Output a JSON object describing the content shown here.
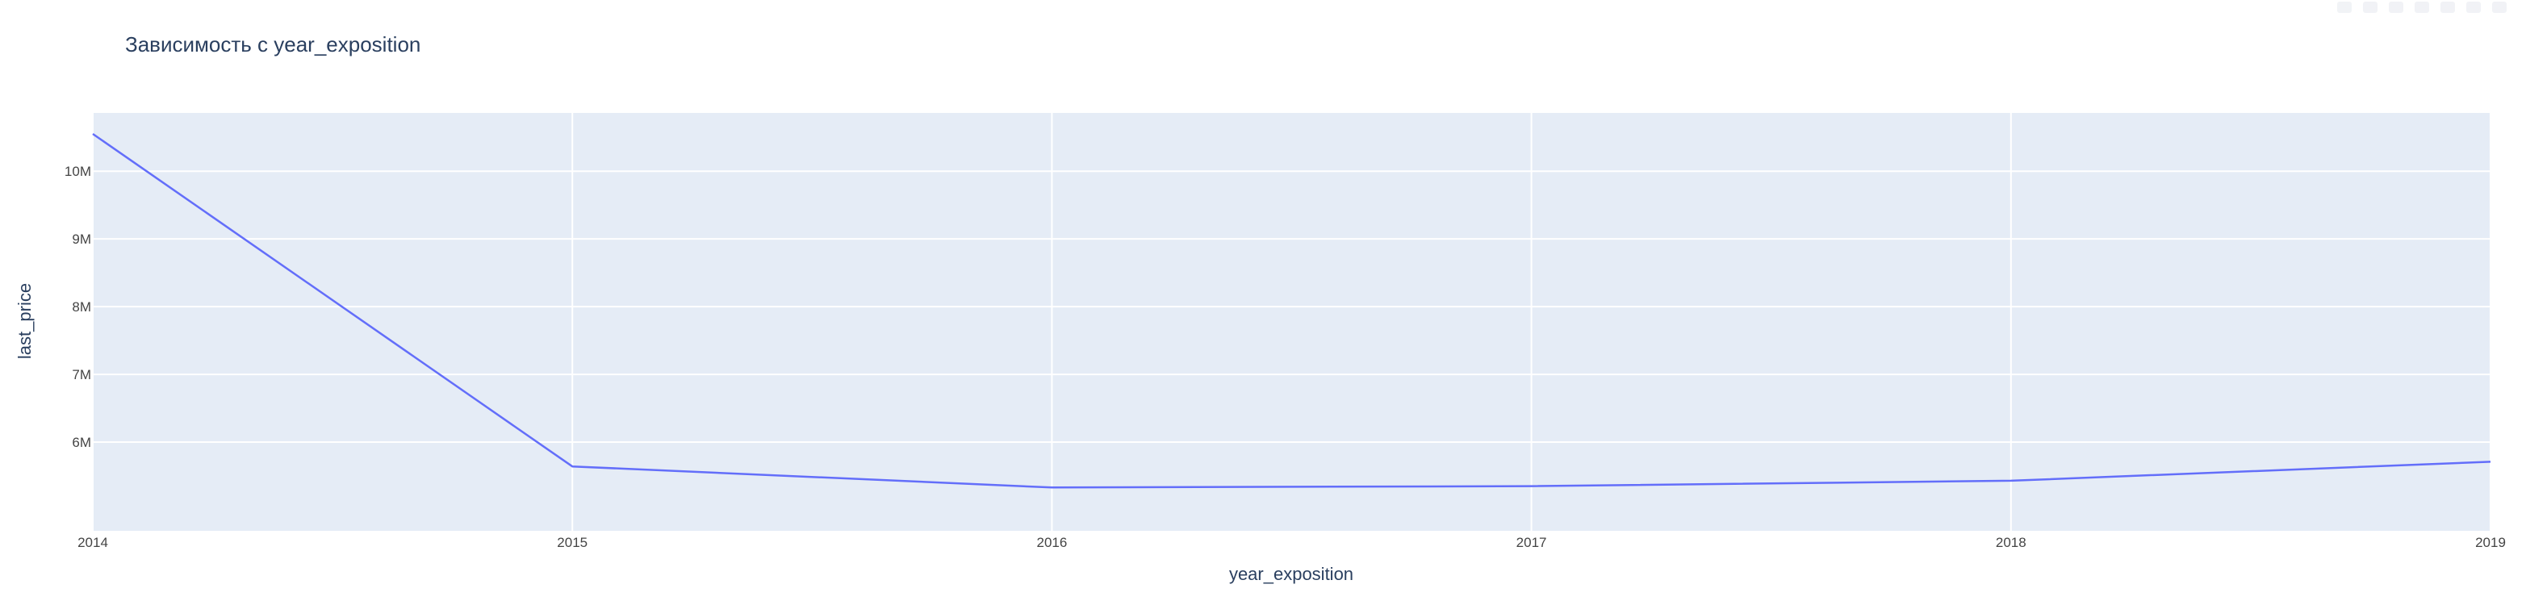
{
  "chart_data": {
    "type": "line",
    "title": "Зависимость с year_exposition",
    "xlabel": "year_exposition",
    "ylabel": "last_price",
    "x": [
      2014,
      2015,
      2016,
      2017,
      2018,
      2019
    ],
    "series": [
      {
        "values": [
          10550000,
          5640000,
          5330000,
          5350000,
          5430000,
          5710000
        ]
      }
    ],
    "xlim": [
      2014,
      2019
    ],
    "ylim": [
      4690000,
      10860000
    ],
    "xticks": [
      2014,
      2015,
      2016,
      2017,
      2018,
      2019
    ],
    "xtick_labels": [
      "2014",
      "2015",
      "2016",
      "2017",
      "2018",
      "2019"
    ],
    "yticks": [
      6000000,
      7000000,
      8000000,
      9000000,
      10000000
    ],
    "ytick_labels": [
      "6M",
      "7M",
      "8M",
      "9M",
      "10M"
    ],
    "grid": true,
    "colors": {
      "plot_background": "#E5ECF6",
      "grid": "#FFFFFF",
      "line": "#636EFA",
      "text": "#2A3F5F",
      "tick_text": "#444444"
    }
  }
}
